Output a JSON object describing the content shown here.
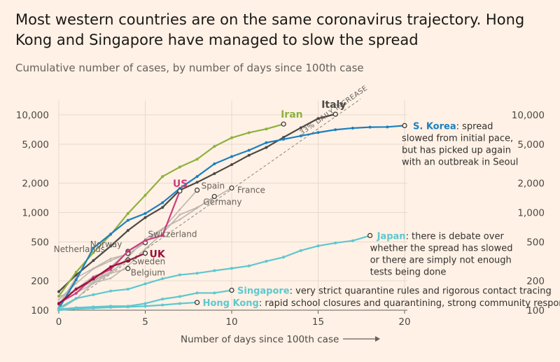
{
  "title": "Most western countries are on the same coronavirus trajectory. Hong Kong and Singapore have managed to slow the spread",
  "subtitle": "Cumulative number of cases, by number of days since 100th case",
  "chart_data": {
    "type": "line",
    "title": "Most western countries are on the same coronavirus trajectory. Hong Kong and Singapore have managed to slow the spread",
    "subtitle": "Cumulative number of cases, by number of days since 100th case",
    "xlabel": "Number of days since 100th case",
    "ylabel": "",
    "xlim": [
      0,
      20
    ],
    "ylim": [
      100,
      14000
    ],
    "yscale": "log",
    "grid": true,
    "x_ticks": [
      0,
      5,
      10,
      15,
      20
    ],
    "y_ticks": [
      100,
      200,
      500,
      1000,
      2000,
      5000,
      10000
    ],
    "x_tick_labels": [
      "0",
      "5",
      "10",
      "15",
      "20"
    ],
    "y_tick_labels": [
      "100",
      "200",
      "500",
      "1,000",
      "2,000",
      "5,000",
      "10,000"
    ],
    "reference_line": {
      "label": "33% DAILY INCREASE",
      "start_value": 100,
      "daily_growth": 1.33
    },
    "series": [
      {
        "name": "Italy",
        "color": "#4d4845",
        "highlight": true,
        "label": "Italy",
        "x": [
          0,
          1,
          2,
          3,
          4,
          5,
          6,
          7,
          8,
          9,
          10,
          11,
          12,
          13,
          14,
          15,
          16
        ],
        "values": [
          155,
          229,
          322,
          453,
          655,
          888,
          1128,
          1694,
          2036,
          2502,
          3089,
          3858,
          4636,
          5883,
          7375,
          9172,
          10149
        ]
      },
      {
        "name": "Iran",
        "color": "#8eb140",
        "highlight": true,
        "label": "Iran",
        "x": [
          0,
          1,
          2,
          3,
          4,
          5,
          6,
          7,
          8,
          9,
          10,
          11,
          12,
          13
        ],
        "values": [
          139,
          245,
          388,
          593,
          978,
          1501,
          2336,
          2922,
          3513,
          4747,
          5823,
          6566,
          7161,
          8042
        ]
      },
      {
        "name": "S. Korea",
        "color": "#1c7fbf",
        "highlight": true,
        "label": "S. Korea",
        "annotation": ": spread slowed from initial pace, but has picked up again with an outbreak in Seoul",
        "annotation_lines": [
          ": spread",
          "slowed from initial pace,",
          "but has picked up again",
          "with an outbreak in Seoul"
        ],
        "x": [
          0,
          1,
          2,
          3,
          4,
          5,
          6,
          7,
          8,
          9,
          10,
          11,
          12,
          13,
          14,
          15,
          16,
          17,
          18,
          19,
          20
        ],
        "values": [
          104,
          204,
          433,
          602,
          833,
          977,
          1261,
          1766,
          2337,
          3150,
          3736,
          4335,
          5186,
          5621,
          6088,
          6593,
          7041,
          7314,
          7478,
          7513,
          7755
        ]
      },
      {
        "name": "US",
        "color": "#cc3e80",
        "highlight": true,
        "label": "US",
        "x": [
          0,
          1,
          2,
          3,
          4,
          5,
          6,
          7
        ],
        "values": [
          118,
          149,
          217,
          262,
          402,
          518,
          583,
          1660
        ]
      },
      {
        "name": "UK",
        "color": "#990f3d",
        "highlight": true,
        "label": "UK",
        "x": [
          0,
          1,
          2,
          3,
          4,
          5
        ],
        "values": [
          116,
          164,
          209,
          278,
          321,
          383
        ]
      },
      {
        "name": "Spain",
        "color": "#bcb5ad",
        "highlight": false,
        "label": "Spain",
        "x": [
          0,
          1,
          2,
          3,
          4,
          5,
          6,
          7,
          8
        ],
        "values": [
          120,
          165,
          222,
          259,
          400,
          500,
          673,
          1073,
          1695
        ]
      },
      {
        "name": "France",
        "color": "#bcb5ad",
        "highlight": false,
        "label": "France",
        "x": [
          0,
          1,
          2,
          3,
          4,
          5,
          6,
          7,
          8,
          9,
          10
        ],
        "values": [
          100,
          130,
          191,
          212,
          285,
          423,
          613,
          949,
          1126,
          1412,
          1784
        ]
      },
      {
        "name": "Germany",
        "color": "#bcb5ad",
        "highlight": false,
        "label": "Germany",
        "x": [
          0,
          1,
          2,
          3,
          4,
          5,
          6,
          7,
          8,
          9
        ],
        "values": [
          117,
          150,
          188,
          240,
          349,
          534,
          684,
          847,
          1112,
          1460
        ]
      },
      {
        "name": "Switzerland",
        "color": "#bcb5ad",
        "highlight": false,
        "label": "Switzerland",
        "x": [
          0,
          1,
          2,
          3,
          4,
          5
        ],
        "values": [
          114,
          214,
          268,
          337,
          374,
          491
        ]
      },
      {
        "name": "Norway",
        "color": "#bcb5ad",
        "highlight": false,
        "label": "Norway",
        "x": [
          0,
          1,
          2,
          3,
          4
        ],
        "values": [
          113,
          169,
          192,
          277,
          400
        ]
      },
      {
        "name": "Netherlands",
        "color": "#bcb5ad",
        "highlight": false,
        "label": "Netherlands",
        "x": [
          0,
          1,
          2,
          3,
          4
        ],
        "values": [
          128,
          188,
          265,
          321,
          382
        ]
      },
      {
        "name": "Sweden",
        "color": "#bcb5ad",
        "highlight": false,
        "label": "Sweden",
        "x": [
          0,
          1,
          2,
          3,
          4
        ],
        "values": [
          137,
          161,
          203,
          248,
          326
        ]
      },
      {
        "name": "Belgium",
        "color": "#bcb5ad",
        "highlight": false,
        "label": "Belgium",
        "x": [
          0,
          1,
          2,
          3,
          4
        ],
        "values": [
          109,
          169,
          200,
          239,
          267
        ]
      },
      {
        "name": "Japan",
        "color": "#5ec7cf",
        "highlight": true,
        "label": "Japan",
        "annotation": ": there is debate over whether the spread has slowed or there are simply not enough tests being done",
        "annotation_lines": [
          ": there is debate over",
          "whether the spread has slowed",
          "or there are simply not enough",
          "tests being done"
        ],
        "x": [
          0,
          1,
          2,
          3,
          4,
          5,
          6,
          7,
          8,
          9,
          10,
          11,
          12,
          13,
          14,
          15,
          16,
          17,
          18
        ],
        "values": [
          105,
          132,
          144,
          157,
          164,
          186,
          210,
          230,
          239,
          254,
          268,
          284,
          317,
          349,
          408,
          455,
          488,
          514,
          581
        ]
      },
      {
        "name": "Singapore",
        "color": "#5ec7cf",
        "highlight": true,
        "label": "Singapore",
        "annotation": ": very strict quarantine rules and rigorous contact tracing",
        "annotation_lines": [
          ": very strict quarantine rules and rigorous contact tracing"
        ],
        "x": [
          0,
          1,
          2,
          3,
          4,
          5,
          6,
          7,
          8,
          9,
          10
        ],
        "values": [
          102,
          106,
          108,
          110,
          110,
          117,
          130,
          138,
          150,
          150,
          160
        ]
      },
      {
        "name": "Hong Kong",
        "color": "#5ec7cf",
        "highlight": true,
        "label": "Hong Kong",
        "annotation": ": rapid school closures and quarantining, strong community response",
        "annotation_lines": [
          ": rapid school closures and quarantining, strong community response"
        ],
        "x": [
          0,
          1,
          2,
          3,
          4,
          5,
          6,
          7,
          8
        ],
        "values": [
          100,
          103,
          105,
          107,
          108,
          110,
          113,
          117,
          120
        ]
      }
    ]
  }
}
